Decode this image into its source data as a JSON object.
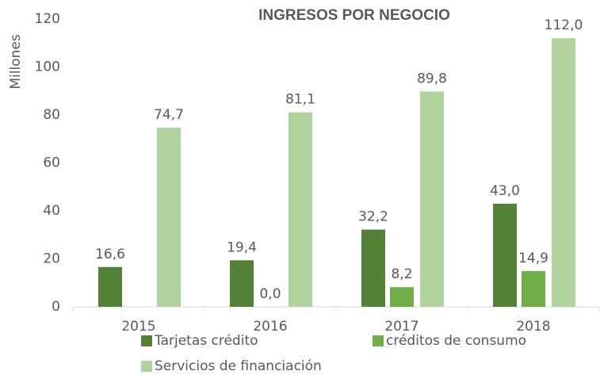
{
  "chart_data": {
    "type": "bar",
    "title": "INGRESOS POR NEGOCIO",
    "y_label": "Millones",
    "categories": [
      "2015",
      "2016",
      "2017",
      "2018"
    ],
    "series": [
      {
        "name": "Tarjetas crédito",
        "color": "#538135",
        "values": [
          16.6,
          19.4,
          32.2,
          43.0
        ],
        "value_labels": [
          "16,6",
          "19,4",
          "32,2",
          "43,0"
        ]
      },
      {
        "name": "créditos de consumo",
        "color": "#70ad47",
        "values": [
          null,
          0.0,
          8.2,
          14.9
        ],
        "value_labels": [
          null,
          "0,0",
          "8,2",
          "14,9"
        ]
      },
      {
        "name": "Servicios de financiación",
        "color": "#b0d29c",
        "values": [
          74.7,
          81.1,
          89.8,
          112.0
        ],
        "value_labels": [
          "74,7",
          "81,1",
          "89,8",
          "112,0"
        ]
      }
    ],
    "ylim": [
      0,
      120
    ],
    "yticks": [
      0,
      20,
      40,
      60,
      80,
      100,
      120
    ],
    "grid": false
  }
}
